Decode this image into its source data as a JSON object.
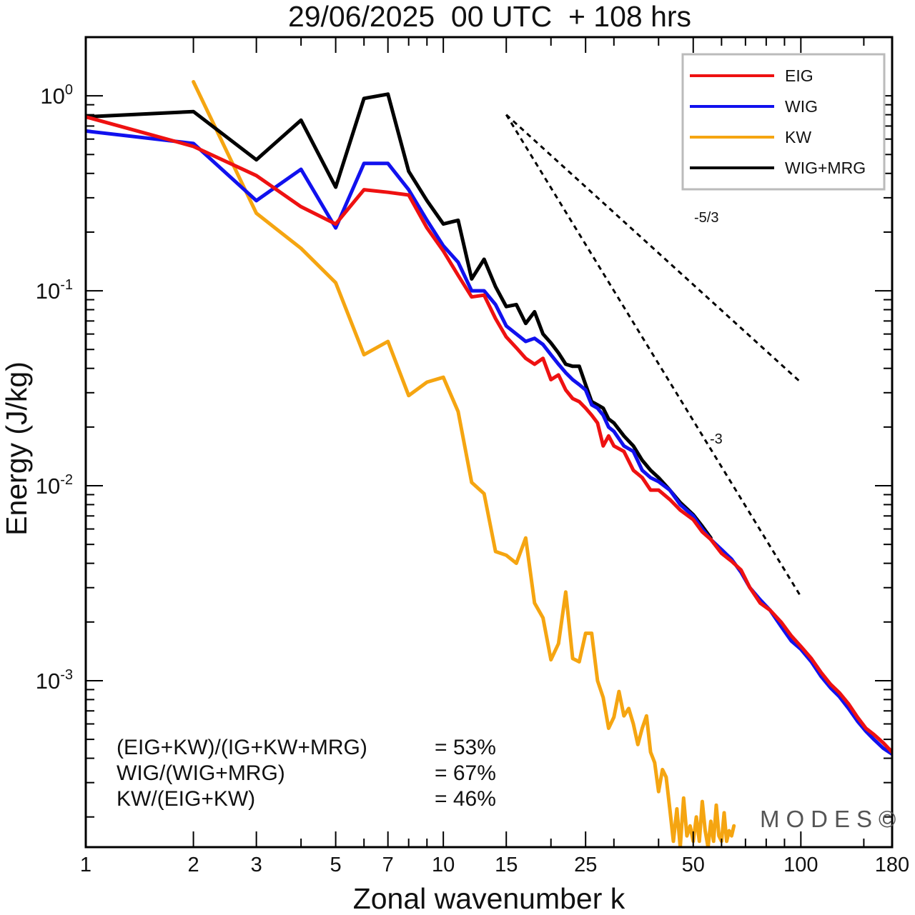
{
  "chart_data": {
    "type": "line",
    "title": "29/06/2025  00 UTC  + 108 hrs",
    "xlabel": "Zonal wavenumber k",
    "ylabel": "Energy (J/kg)",
    "xscale": "log",
    "yscale": "log",
    "xlim": [
      1,
      180
    ],
    "ylim": [
      0.00014,
      2.0
    ],
    "x_ticks": [
      1,
      2,
      3,
      5,
      7,
      10,
      15,
      25,
      50,
      100,
      180
    ],
    "x_tick_labels": [
      "1",
      "2",
      "3",
      "5",
      "7",
      "10",
      "15",
      "25",
      "50",
      "100",
      "180"
    ],
    "y_ticks": [
      1,
      0.1,
      0.01,
      0.001
    ],
    "y_tick_labels": [
      {
        "base": "10",
        "exp": "0"
      },
      {
        "base": "10",
        "exp": "-1"
      },
      {
        "base": "10",
        "exp": "-2"
      },
      {
        "base": "10",
        "exp": "-3"
      }
    ],
    "legend_position": "top-right",
    "grid": false,
    "colors": {
      "EIG": "#ee1111",
      "WIG": "#1111ee",
      "KW": "#f5a511",
      "WIG+MRG": "#000000"
    },
    "series": [
      {
        "name": "EIG",
        "color": "#ee1111",
        "points": [
          [
            1,
            0.78
          ],
          [
            2,
            0.55
          ],
          [
            3,
            0.39
          ],
          [
            4,
            0.27
          ],
          [
            5,
            0.22
          ],
          [
            6,
            0.33
          ],
          [
            7,
            0.32
          ],
          [
            8,
            0.31
          ],
          [
            9,
            0.21
          ],
          [
            10,
            0.16
          ],
          [
            11,
            0.12
          ],
          [
            12,
            0.093
          ],
          [
            13,
            0.095
          ],
          [
            14,
            0.072
          ],
          [
            15,
            0.058
          ],
          [
            16,
            0.051
          ],
          [
            17,
            0.045
          ],
          [
            18,
            0.042
          ],
          [
            19,
            0.045
          ],
          [
            20,
            0.035
          ],
          [
            21,
            0.037
          ],
          [
            22,
            0.031
          ],
          [
            23,
            0.028
          ],
          [
            24,
            0.027
          ],
          [
            25,
            0.025
          ],
          [
            26,
            0.023
          ],
          [
            27,
            0.021
          ],
          [
            28,
            0.016
          ],
          [
            29,
            0.018
          ],
          [
            30,
            0.016
          ],
          [
            32,
            0.015
          ],
          [
            34,
            0.012
          ],
          [
            36,
            0.011
          ],
          [
            38,
            0.0095
          ],
          [
            40,
            0.0095
          ],
          [
            43,
            0.0085
          ],
          [
            46,
            0.0075
          ],
          [
            50,
            0.0067
          ],
          [
            53,
            0.0058
          ],
          [
            56,
            0.0053
          ],
          [
            60,
            0.0045
          ],
          [
            64,
            0.0041
          ],
          [
            68,
            0.0037
          ],
          [
            72,
            0.003
          ],
          [
            77,
            0.0025
          ],
          [
            82,
            0.0023
          ],
          [
            88,
            0.002
          ],
          [
            94,
            0.0017
          ],
          [
            100,
            0.0015
          ],
          [
            107,
            0.0013
          ],
          [
            114,
            0.0011
          ],
          [
            121,
            0.00096
          ],
          [
            128,
            0.00087
          ],
          [
            136,
            0.00076
          ],
          [
            144,
            0.00065
          ],
          [
            152,
            0.00057
          ],
          [
            160,
            0.00053
          ],
          [
            170,
            0.00048
          ],
          [
            180,
            0.00043
          ]
        ]
      },
      {
        "name": "WIG",
        "color": "#1111ee",
        "points": [
          [
            1,
            0.66
          ],
          [
            2,
            0.57
          ],
          [
            3,
            0.29
          ],
          [
            4,
            0.42
          ],
          [
            5,
            0.21
          ],
          [
            6,
            0.45
          ],
          [
            7,
            0.45
          ],
          [
            8,
            0.33
          ],
          [
            9,
            0.23
          ],
          [
            10,
            0.17
          ],
          [
            11,
            0.14
          ],
          [
            12,
            0.1
          ],
          [
            13,
            0.1
          ],
          [
            14,
            0.085
          ],
          [
            15,
            0.066
          ],
          [
            16,
            0.06
          ],
          [
            17,
            0.055
          ],
          [
            18,
            0.057
          ],
          [
            19,
            0.053
          ],
          [
            20,
            0.047
          ],
          [
            21,
            0.042
          ],
          [
            22,
            0.038
          ],
          [
            23,
            0.035
          ],
          [
            24,
            0.033
          ],
          [
            25,
            0.031
          ],
          [
            26,
            0.026
          ],
          [
            27,
            0.025
          ],
          [
            28,
            0.023
          ],
          [
            29,
            0.02
          ],
          [
            30,
            0.019
          ],
          [
            32,
            0.016
          ],
          [
            34,
            0.015
          ],
          [
            36,
            0.012
          ],
          [
            38,
            0.011
          ],
          [
            40,
            0.0105
          ],
          [
            43,
            0.0095
          ],
          [
            46,
            0.008
          ],
          [
            50,
            0.007
          ],
          [
            53,
            0.006
          ],
          [
            56,
            0.0053
          ],
          [
            60,
            0.0047
          ],
          [
            64,
            0.0042
          ],
          [
            68,
            0.0036
          ],
          [
            72,
            0.003
          ],
          [
            77,
            0.0026
          ],
          [
            82,
            0.0023
          ],
          [
            88,
            0.0019
          ],
          [
            94,
            0.0016
          ],
          [
            100,
            0.00145
          ],
          [
            107,
            0.00125
          ],
          [
            114,
            0.00105
          ],
          [
            121,
            0.00092
          ],
          [
            128,
            0.00083
          ],
          [
            136,
            0.00072
          ],
          [
            144,
            0.00062
          ],
          [
            152,
            0.00055
          ],
          [
            160,
            0.0005
          ],
          [
            170,
            0.00045
          ],
          [
            180,
            0.00042
          ]
        ]
      },
      {
        "name": "KW",
        "color": "#f5a511",
        "points": [
          [
            2,
            1.18
          ],
          [
            3,
            0.25
          ],
          [
            4,
            0.165
          ],
          [
            5,
            0.11
          ],
          [
            6,
            0.047
          ],
          [
            7,
            0.055
          ],
          [
            8,
            0.029
          ],
          [
            9,
            0.034
          ],
          [
            10,
            0.036
          ],
          [
            11,
            0.024
          ],
          [
            12,
            0.0104
          ],
          [
            13,
            0.0091
          ],
          [
            14,
            0.0046
          ],
          [
            15,
            0.0044
          ],
          [
            16,
            0.004
          ],
          [
            17,
            0.0054
          ],
          [
            18,
            0.0025
          ],
          [
            19,
            0.0021
          ],
          [
            20,
            0.00128
          ],
          [
            21,
            0.00155
          ],
          [
            22,
            0.00285
          ],
          [
            23,
            0.0013
          ],
          [
            24,
            0.00125
          ],
          [
            25,
            0.00175
          ],
          [
            26,
            0.00175
          ],
          [
            27,
            0.001
          ],
          [
            28,
            0.00082
          ],
          [
            29,
            0.00057
          ],
          [
            30,
            0.00065
          ],
          [
            31,
            0.00088
          ],
          [
            32,
            0.00066
          ],
          [
            33,
            0.00072
          ],
          [
            34,
            0.0006
          ],
          [
            35,
            0.00047
          ],
          [
            36,
            0.00057
          ],
          [
            37,
            0.00066
          ],
          [
            38,
            0.00043
          ],
          [
            39,
            0.00038
          ],
          [
            40,
            0.00027
          ],
          [
            41,
            0.00035
          ],
          [
            42,
            0.00032
          ],
          [
            43,
            0.00022
          ],
          [
            44,
            0.00015
          ],
          [
            45,
            0.00022
          ],
          [
            46,
            0.00014
          ],
          [
            47,
            0.00025
          ],
          [
            48,
            0.00016
          ],
          [
            49,
            0.00018
          ],
          [
            50,
            0.00015
          ],
          [
            51,
            0.0002
          ],
          [
            52,
            0.00015
          ],
          [
            53,
            0.00024
          ],
          [
            54,
            0.00017
          ],
          [
            55,
            0.00014
          ],
          [
            56,
            0.00019
          ],
          [
            57,
            0.00015
          ],
          [
            58,
            0.00023
          ],
          [
            59,
            0.00016
          ],
          [
            60,
            0.00015
          ],
          [
            61,
            0.00021
          ],
          [
            62,
            0.00015
          ],
          [
            63,
            0.00017
          ],
          [
            64,
            0.00016
          ],
          [
            65,
            0.00018
          ]
        ]
      },
      {
        "name": "WIG+MRG",
        "color": "#000000",
        "points": [
          [
            1,
            0.78
          ],
          [
            2,
            0.83
          ],
          [
            3,
            0.47
          ],
          [
            4,
            0.75
          ],
          [
            5,
            0.34
          ],
          [
            6,
            0.97
          ],
          [
            7,
            1.02
          ],
          [
            8,
            0.41
          ],
          [
            9,
            0.29
          ],
          [
            10,
            0.22
          ],
          [
            11,
            0.23
          ],
          [
            12,
            0.115
          ],
          [
            13,
            0.145
          ],
          [
            14,
            0.105
          ],
          [
            15,
            0.083
          ],
          [
            16,
            0.085
          ],
          [
            17,
            0.068
          ],
          [
            18,
            0.078
          ],
          [
            19,
            0.06
          ],
          [
            20,
            0.054
          ],
          [
            21,
            0.048
          ],
          [
            22,
            0.042
          ],
          [
            23,
            0.041
          ],
          [
            24,
            0.041
          ],
          [
            25,
            0.033
          ],
          [
            26,
            0.027
          ],
          [
            27,
            0.026
          ],
          [
            28,
            0.025
          ],
          [
            29,
            0.022
          ],
          [
            30,
            0.021
          ],
          [
            32,
            0.018
          ],
          [
            34,
            0.016
          ],
          [
            36,
            0.0135
          ],
          [
            38,
            0.012
          ],
          [
            40,
            0.011
          ],
          [
            43,
            0.0095
          ],
          [
            46,
            0.0082
          ],
          [
            50,
            0.0071
          ],
          [
            53,
            0.0062
          ],
          [
            56,
            0.0054
          ]
        ]
      }
    ],
    "reference_lines": [
      {
        "label": "-5/3",
        "slope": -1.6667,
        "x": [
          15,
          100
        ],
        "y_start": 0.8
      },
      {
        "label": "-3",
        "slope": -3,
        "x": [
          15,
          100
        ],
        "y_start": 0.8
      }
    ],
    "annotations": [
      {
        "name": "(EIG+KW)/(IG+KW+MRG)",
        "value": "= 53%"
      },
      {
        "name": "WIG/(WIG+MRG)",
        "value": "= 67%"
      },
      {
        "name": "KW/(EIG+KW)",
        "value": "= 46%"
      }
    ],
    "watermark": "MODES©"
  }
}
